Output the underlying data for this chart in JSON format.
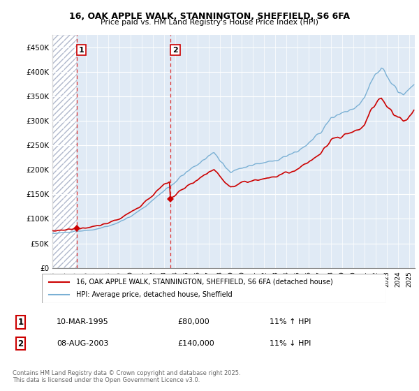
{
  "title1": "16, OAK APPLE WALK, STANNINGTON, SHEFFIELD, S6 6FA",
  "title2": "Price paid vs. HM Land Registry's House Price Index (HPI)",
  "ylim": [
    0,
    475000
  ],
  "yticks": [
    0,
    50000,
    100000,
    150000,
    200000,
    250000,
    300000,
    350000,
    400000,
    450000
  ],
  "ytick_labels": [
    "£0",
    "£50K",
    "£100K",
    "£150K",
    "£200K",
    "£250K",
    "£300K",
    "£350K",
    "£400K",
    "£450K"
  ],
  "sale1_year": 1995.1667,
  "sale1_price": 80000,
  "sale2_year": 2003.5833,
  "sale2_price": 140000,
  "legend_property": "16, OAK APPLE WALK, STANNINGTON, SHEFFIELD, S6 6FA (detached house)",
  "legend_hpi": "HPI: Average price, detached house, Sheffield",
  "footer1": "Contains HM Land Registry data © Crown copyright and database right 2025.",
  "footer2": "This data is licensed under the Open Government Licence v3.0.",
  "note1_label": "1",
  "note1_date": "10-MAR-1995",
  "note1_price": "£80,000",
  "note1_hpi": "11% ↑ HPI",
  "note2_label": "2",
  "note2_date": "08-AUG-2003",
  "note2_price": "£140,000",
  "note2_hpi": "11% ↓ HPI",
  "property_color": "#cc0000",
  "hpi_color": "#7ab0d4",
  "xlim_start": 1993,
  "xlim_end": 2025.5
}
